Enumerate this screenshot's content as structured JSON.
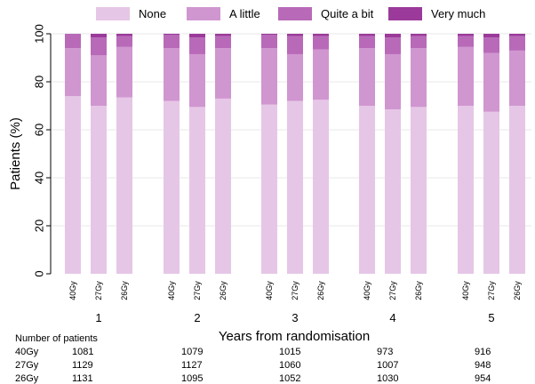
{
  "chart_data": {
    "type": "stacked-bar",
    "legend": {
      "placement": "top",
      "items": [
        {
          "name": "None",
          "color": "#e6c6e6"
        },
        {
          "name": "A little",
          "color": "#d096d0"
        },
        {
          "name": "Quite a bit",
          "color": "#b86ab8"
        },
        {
          "name": "Very much",
          "color": "#9b3a9b"
        }
      ]
    },
    "ylabel": "Patients (%)",
    "xlabel": "Years from randomisation",
    "ylim": [
      0,
      100
    ],
    "yticks": [
      0,
      20,
      40,
      60,
      80,
      100
    ],
    "grid": true,
    "groups": [
      {
        "year": "1",
        "bars": [
          {
            "arm": "40Gy",
            "values": [
              74,
              20,
              6,
              0
            ]
          },
          {
            "arm": "27Gy",
            "values": [
              70,
              21,
              7.5,
              1.5
            ]
          },
          {
            "arm": "26Gy",
            "values": [
              73.5,
              21,
              4.5,
              1
            ]
          }
        ]
      },
      {
        "year": "2",
        "bars": [
          {
            "arm": "40Gy",
            "values": [
              72,
              22,
              5.5,
              0.5
            ]
          },
          {
            "arm": "27Gy",
            "values": [
              69.5,
              22,
              7,
              1.5
            ]
          },
          {
            "arm": "26Gy",
            "values": [
              73,
              21,
              5,
              1
            ]
          }
        ]
      },
      {
        "year": "3",
        "bars": [
          {
            "arm": "40Gy",
            "values": [
              70.5,
              23.5,
              5.5,
              0.5
            ]
          },
          {
            "arm": "27Gy",
            "values": [
              72,
              19.5,
              7.5,
              1
            ]
          },
          {
            "arm": "26Gy",
            "values": [
              72.5,
              21,
              5.5,
              1
            ]
          }
        ]
      },
      {
        "year": "4",
        "bars": [
          {
            "arm": "40Gy",
            "values": [
              70,
              24,
              5,
              1
            ]
          },
          {
            "arm": "27Gy",
            "values": [
              68.5,
              23,
              7,
              1.5
            ]
          },
          {
            "arm": "26Gy",
            "values": [
              69.5,
              24.5,
              5,
              1
            ]
          }
        ]
      },
      {
        "year": "5",
        "bars": [
          {
            "arm": "40Gy",
            "values": [
              70,
              24.5,
              4.5,
              1
            ]
          },
          {
            "arm": "27Gy",
            "values": [
              67.5,
              24.5,
              6.5,
              1.5
            ]
          },
          {
            "arm": "26Gy",
            "values": [
              70,
              23,
              6,
              1
            ]
          }
        ]
      }
    ]
  },
  "patients_table": {
    "title": "Number of patients",
    "rows": [
      {
        "arm": "40Gy",
        "counts": [
          "1081",
          "1079",
          "1015",
          "973",
          "916"
        ]
      },
      {
        "arm": "27Gy",
        "counts": [
          "1129",
          "1127",
          "1060",
          "1007",
          "948"
        ]
      },
      {
        "arm": "26Gy",
        "counts": [
          "1131",
          "1095",
          "1052",
          "1030",
          "954"
        ]
      }
    ]
  }
}
